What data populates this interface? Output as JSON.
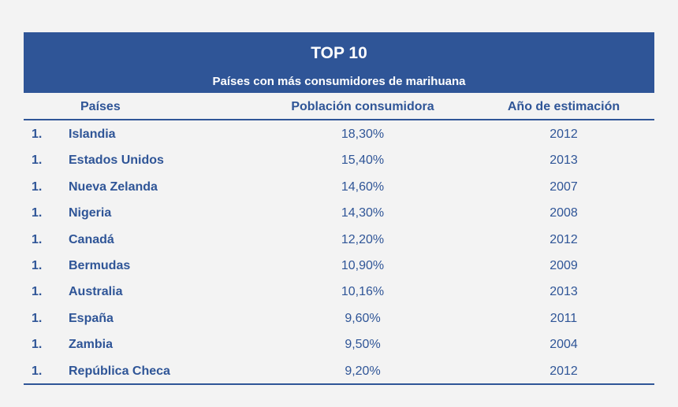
{
  "chart_data": {
    "type": "table",
    "title": "TOP 10",
    "subtitle": "Países con más consumidores de marihuana",
    "columns": [
      "Países",
      "Población consumidora",
      "Año de estimación"
    ],
    "rows": [
      {
        "rank": "1.",
        "country": "Islandia",
        "population": "18,30%",
        "year": "2012"
      },
      {
        "rank": "1.",
        "country": "Estados Unidos",
        "population": "15,40%",
        "year": "2013"
      },
      {
        "rank": "1.",
        "country": "Nueva Zelanda",
        "population": "14,60%",
        "year": "2007"
      },
      {
        "rank": "1.",
        "country": "Nigeria",
        "population": "14,30%",
        "year": "2008"
      },
      {
        "rank": "1.",
        "country": "Canadá",
        "population": "12,20%",
        "year": "2012"
      },
      {
        "rank": "1.",
        "country": "Bermudas",
        "population": "10,90%",
        "year": "2009"
      },
      {
        "rank": "1.",
        "country": "Australia",
        "population": "10,16%",
        "year": "2013"
      },
      {
        "rank": "1.",
        "country": "España",
        "population": "9,60%",
        "year": "2011"
      },
      {
        "rank": "1.",
        "country": "Zambia",
        "population": "9,50%",
        "year": "2004"
      },
      {
        "rank": "1.",
        "country": "República Checa",
        "population": "9,20%",
        "year": "2012"
      }
    ]
  },
  "colors": {
    "accent": "#2f5597",
    "background": "#f3f3f3",
    "banner_text": "#ffffff"
  }
}
